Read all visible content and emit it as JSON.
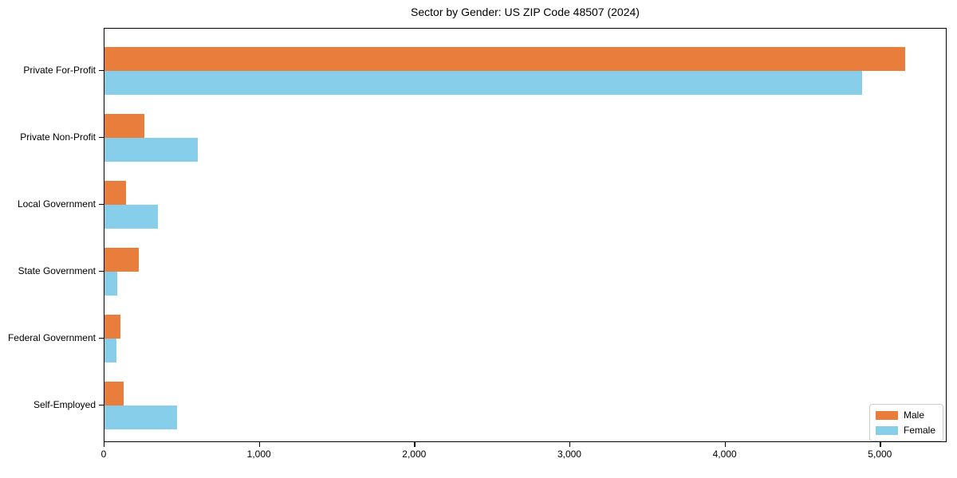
{
  "title": "Sector by Gender: US ZIP Code 48507 (2024)",
  "colors": {
    "male": "#e87d3c",
    "female": "#87ceeb",
    "axis": "#000000",
    "legend_border": "#cccccc",
    "background": "#ffffff"
  },
  "legend": {
    "position": "lower right",
    "entries": [
      "Male",
      "Female"
    ]
  },
  "chart_data": {
    "type": "bar",
    "orientation": "horizontal",
    "title": "Sector by Gender: US ZIP Code 48507 (2024)",
    "xlabel": "",
    "ylabel": "",
    "categories": [
      "Private For-Profit",
      "Private Non-Profit",
      "Local Government",
      "State Government",
      "Federal Government",
      "Self-Employed"
    ],
    "series": [
      {
        "name": "Male",
        "color": "#e87d3c",
        "values": [
          5160,
          255,
          140,
          220,
          105,
          125
        ]
      },
      {
        "name": "Female",
        "color": "#87ceeb",
        "values": [
          4880,
          600,
          345,
          80,
          75,
          470
        ]
      }
    ],
    "xlim": [
      0,
      5430
    ],
    "xticks": [
      0,
      1000,
      2000,
      3000,
      4000,
      5000
    ],
    "xtick_labels": [
      "0",
      "1,000",
      "2,000",
      "3,000",
      "4,000",
      "5,000"
    ],
    "grid": false,
    "legend_position": "lower right"
  }
}
